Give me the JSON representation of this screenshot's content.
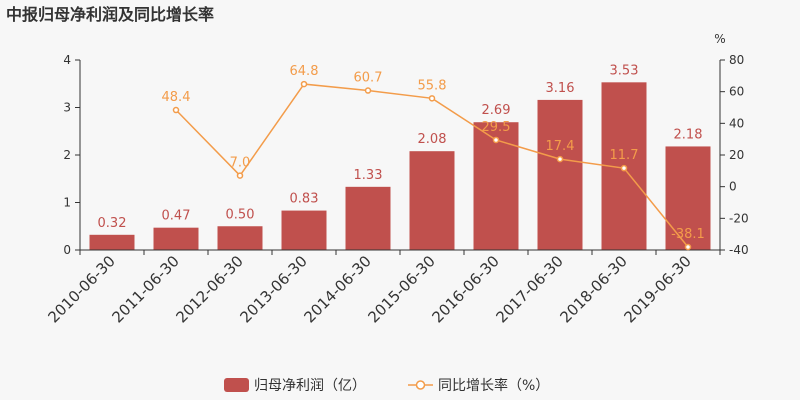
{
  "chart_data": {
    "type": "bar",
    "title": "中报归母净利润及同比增长率",
    "categories": [
      "2010-06-30",
      "2011-06-30",
      "2012-06-30",
      "2013-06-30",
      "2014-06-30",
      "2015-06-30",
      "2016-06-30",
      "2017-06-30",
      "2018-06-30",
      "2019-06-30"
    ],
    "series": [
      {
        "name": "归母净利润（亿）",
        "type": "bar",
        "axis": "left",
        "color": "#c0504d",
        "values": [
          0.32,
          0.47,
          0.5,
          0.83,
          1.33,
          2.08,
          2.69,
          3.16,
          3.53,
          2.18
        ],
        "value_labels": [
          "0.32",
          "0.47",
          "0.50",
          "0.83",
          "1.33",
          "2.08",
          "2.69",
          "3.16",
          "3.53",
          "2.18"
        ]
      },
      {
        "name": "同比增长率（%）",
        "type": "line",
        "axis": "right",
        "color": "#f39c4a",
        "values": [
          null,
          48.4,
          7.0,
          64.8,
          60.7,
          55.8,
          29.5,
          17.4,
          11.7,
          -38.1
        ],
        "value_labels": [
          "",
          "48.4",
          "7.0",
          "64.8",
          "60.7",
          "55.8",
          "29.5",
          "17.4",
          "11.7",
          "-38.1"
        ]
      }
    ],
    "y_left": {
      "ylim": [
        0,
        4
      ],
      "ticks": [
        "0",
        "1",
        "2",
        "3",
        "4"
      ]
    },
    "y_right": {
      "unit": "%",
      "ylim": [
        -40,
        80
      ],
      "ticks": [
        "-40",
        "-20",
        "0",
        "20",
        "40",
        "60",
        "80"
      ]
    },
    "legend_position": "bottom",
    "grid": false
  }
}
